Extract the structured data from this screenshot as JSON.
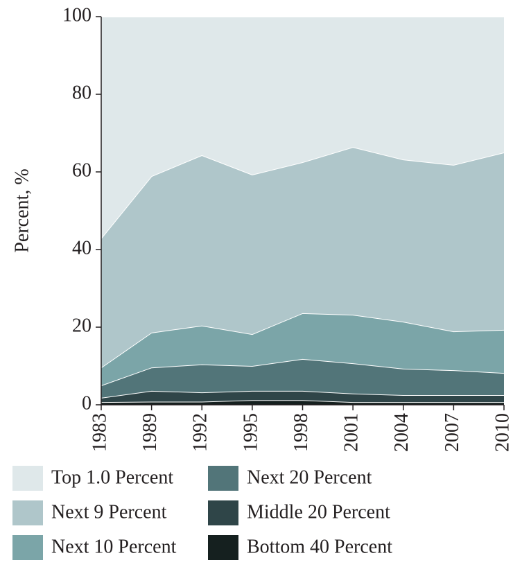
{
  "chart_data": {
    "type": "area",
    "stacked": true,
    "y_label": "Percent, %",
    "categories": [
      "1983",
      "1989",
      "1992",
      "1995",
      "1998",
      "2001",
      "2004",
      "2007",
      "2010"
    ],
    "ylim": [
      0,
      100
    ],
    "yticks": [
      0,
      20,
      40,
      60,
      80,
      100
    ],
    "series": [
      {
        "name": "Top 1.0 Percent",
        "color": "#dfe8ea",
        "values": [
          57.1,
          41.1,
          35.7,
          40.7,
          37.5,
          33.6,
          36.8,
          38.2,
          35.0
        ]
      },
      {
        "name": "Next 9 Percent",
        "color": "#afc6ca",
        "values": [
          33.3,
          40.3,
          43.9,
          41.1,
          38.9,
          43.2,
          41.8,
          42.9,
          45.7
        ]
      },
      {
        "name": "Next 10 Percent",
        "color": "#7ba5a8",
        "values": [
          4.6,
          9.0,
          10.0,
          8.2,
          11.8,
          12.5,
          12.1,
          10.0,
          11.1
        ]
      },
      {
        "name": "Next 20 Percent",
        "color": "#527579",
        "values": [
          3.2,
          6.0,
          7.2,
          6.4,
          8.2,
          7.8,
          6.8,
          6.4,
          5.7
        ]
      },
      {
        "name": "Middle 20 Percent",
        "color": "#2f4548",
        "values": [
          1.1,
          2.8,
          2.4,
          2.4,
          2.4,
          2.2,
          1.8,
          1.8,
          1.8
        ]
      },
      {
        "name": "Bottom 40 Percent",
        "color": "#15201f",
        "values": [
          0.7,
          0.8,
          0.8,
          1.2,
          1.2,
          0.7,
          0.7,
          0.7,
          0.7
        ]
      }
    ]
  }
}
